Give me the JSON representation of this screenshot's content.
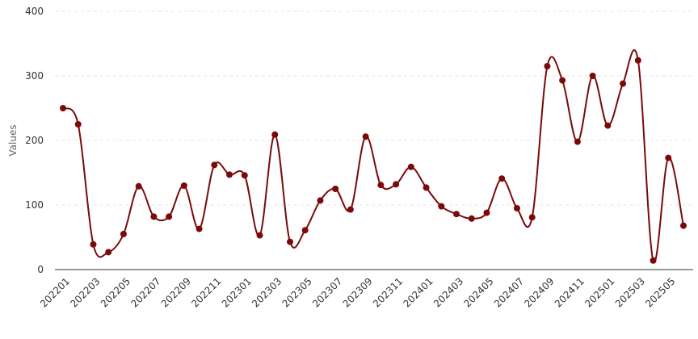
{
  "chart_data": {
    "type": "line",
    "title": "",
    "xlabel": "",
    "ylabel": "Values",
    "ylim": [
      0,
      400
    ],
    "yticks": [
      0,
      100,
      200,
      300,
      400
    ],
    "grid": true,
    "legend": "none",
    "line_color": "#7a0a0a",
    "categories": [
      "202201",
      "202202",
      "202203",
      "202204",
      "202205",
      "202206",
      "202207",
      "202208",
      "202209",
      "202210",
      "202211",
      "202212",
      "202301",
      "202302",
      "202303",
      "202304",
      "202305",
      "202306",
      "202307",
      "202308",
      "202309",
      "202310",
      "202311",
      "202312",
      "202401",
      "202402",
      "202403",
      "202404",
      "202405",
      "202406",
      "202407",
      "202408",
      "202409",
      "202410",
      "202411",
      "202412",
      "202501",
      "202502",
      "202503",
      "202504",
      "202505",
      "202506"
    ],
    "x_tick_labels": [
      "202201",
      "202203",
      "202205",
      "202207",
      "202209",
      "202211",
      "202301",
      "202303",
      "202305",
      "202307",
      "202309",
      "202311",
      "202401",
      "202403",
      "202405",
      "202407",
      "202409",
      "202411",
      "202501",
      "202503",
      "202505"
    ],
    "series": [
      {
        "values": [
          250,
          225,
          39,
          27,
          55,
          129,
          82,
          82,
          130,
          63,
          162,
          147,
          146,
          53,
          209,
          43,
          61,
          107,
          125,
          93,
          206,
          131,
          132,
          159,
          127,
          98,
          86,
          79,
          88,
          141,
          95,
          81,
          315,
          293,
          198,
          300,
          223,
          288,
          324,
          14,
          173,
          68
        ]
      }
    ]
  }
}
